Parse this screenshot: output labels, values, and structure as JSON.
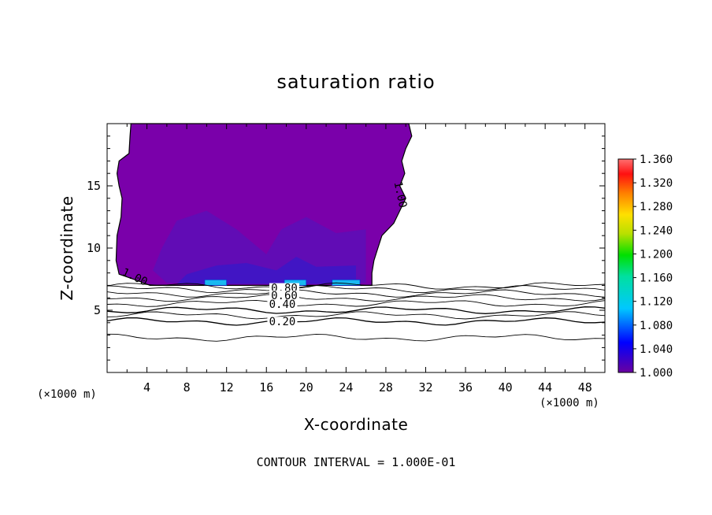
{
  "chart_data": {
    "type": "heatmap",
    "title": "saturation ratio",
    "xlabel": "X-coordinate",
    "ylabel": "Z-coordinate",
    "x_unit": "(×1000 m)",
    "y_unit": "(×1000 m)",
    "footer": "CONTOUR INTERVAL = 1.000E-01",
    "xlim": [
      0,
      50
    ],
    "ylim": [
      0,
      20
    ],
    "x_ticks": [
      4,
      8,
      12,
      16,
      20,
      24,
      28,
      32,
      36,
      40,
      44,
      48
    ],
    "y_ticks": [
      5,
      10,
      15
    ],
    "contour_interval": 0.1,
    "colorbar": {
      "min": 1.0,
      "max": 1.36,
      "ticks": [
        "1.360",
        "1.320",
        "1.280",
        "1.240",
        "1.200",
        "1.160",
        "1.120",
        "1.080",
        "1.040",
        "1.000"
      ]
    },
    "filled_region": {
      "description_value": "saturation ratio >= 1.00",
      "base_color": "#7a00aa",
      "x_range": [
        1.0,
        30.5
      ],
      "z_range": [
        7.0,
        20.0
      ],
      "boundary_label": "1.00"
    },
    "contour_labels": [
      {
        "text": "1.00",
        "x": 2.8,
        "z": 7.7
      },
      {
        "text": "1.00",
        "x": 29.5,
        "z": 14.3
      },
      {
        "text": "0.80",
        "x": 17.8,
        "z": 6.8
      },
      {
        "text": "0.60",
        "x": 17.8,
        "z": 6.2
      },
      {
        "text": "0.40",
        "x": 17.6,
        "z": 5.5
      },
      {
        "text": "0.20",
        "x": 17.6,
        "z": 4.1
      }
    ],
    "contour_lines_z": [
      {
        "level": 0.9,
        "z": 6.95
      },
      {
        "level": 0.8,
        "z": 6.7
      },
      {
        "level": 0.7,
        "z": 6.35
      },
      {
        "level": 0.6,
        "z": 6.0
      },
      {
        "level": 0.5,
        "z": 5.55
      },
      {
        "level": 0.4,
        "z": 5.0
      },
      {
        "level": 0.3,
        "z": 4.6
      },
      {
        "level": 0.2,
        "z": 4.1
      },
      {
        "level": 0.1,
        "z": 2.8
      }
    ],
    "colors": {
      "purple": "#7a00aa",
      "indigo": "#5a10b8",
      "blue": "#3a18c8",
      "cyan": "#19b8f0"
    }
  }
}
